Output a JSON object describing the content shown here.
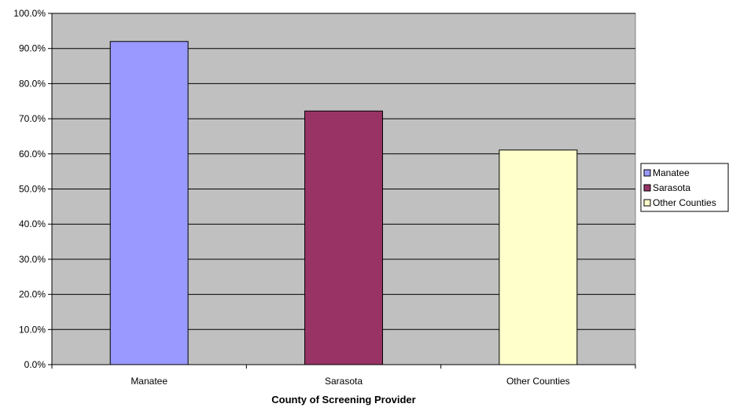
{
  "chart_data": {
    "type": "bar",
    "categories": [
      "Manatee",
      "Sarasota",
      "Other Counties"
    ],
    "values": [
      92.0,
      72.2,
      61.1
    ],
    "xlabel": "County of Screening Provider",
    "ylabel": "",
    "ylim": [
      0,
      100
    ],
    "ytick_values": [
      0,
      10,
      20,
      30,
      40,
      50,
      60,
      70,
      80,
      90,
      100
    ],
    "ytick_labels": [
      "0.0%",
      "10.0%",
      "20.0%",
      "30.0%",
      "40.0%",
      "50.0%",
      "60.0%",
      "70.0%",
      "80.0%",
      "90.0%",
      "100.0%"
    ],
    "grid": true,
    "legend_position": "right",
    "legend": [
      "Manatee",
      "Sarasota",
      "Other Counties"
    ],
    "colors": [
      "#9999ff",
      "#993366",
      "#ffffcc"
    ],
    "plot_background": "#c0c0c0"
  }
}
